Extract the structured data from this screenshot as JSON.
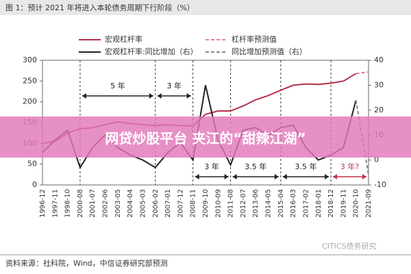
{
  "chart_data": {
    "type": "line",
    "title": "图 1：预计 2021 年将进入本轮债务周期下行阶段（%）",
    "categories": [
      "1996-12",
      "1997-11",
      "1998-10",
      "2000-08",
      "2001-07",
      "2002-06",
      "2003-05",
      "2004-04",
      "2005-03",
      "2006-02",
      "2007-01",
      "2007-12",
      "2008-11",
      "2009-10",
      "2010-09",
      "2011-08",
      "2012-07",
      "2013-06",
      "2014-05",
      "2015-04",
      "2016-03",
      "2017-02",
      "2018-01",
      "2018-12",
      "2019-11",
      "2020-10",
      "2021-09"
    ],
    "series": [
      {
        "name": "宏观杠杆率",
        "color": "#b3304a",
        "dash": false,
        "values": [
          100,
          105,
          125,
          135,
          138,
          145,
          152,
          148,
          145,
          143,
          145,
          143,
          142,
          170,
          178,
          178,
          190,
          205,
          215,
          228,
          240,
          243,
          242,
          245,
          250,
          268,
          null
        ]
      },
      {
        "name": "杠杆率预测值",
        "color": "#e0809c",
        "dash": true,
        "values": [
          null,
          null,
          null,
          null,
          null,
          null,
          null,
          null,
          null,
          null,
          null,
          null,
          null,
          null,
          null,
          null,
          null,
          null,
          null,
          null,
          null,
          null,
          null,
          null,
          null,
          268,
          272
        ]
      },
      {
        "name": "宏观杠杆率:同比增加（右）",
        "color": "#222222",
        "dash": false,
        "axis": "y2",
        "values": [
          3,
          8,
          12,
          -3,
          5,
          10,
          5,
          2,
          0,
          -3,
          3,
          7,
          0,
          30,
          8,
          -2,
          12,
          13,
          10,
          13,
          14,
          5,
          0,
          2,
          5,
          24,
          null
        ]
      },
      {
        "name": "同比增加预测值（右）",
        "color": "#888888",
        "dash": true,
        "axis": "y2",
        "values": [
          null,
          null,
          null,
          null,
          null,
          null,
          null,
          null,
          null,
          null,
          null,
          null,
          null,
          null,
          null,
          null,
          null,
          null,
          null,
          null,
          null,
          null,
          null,
          null,
          null,
          24,
          -6
        ]
      }
    ],
    "ylim": [
      0,
      300
    ],
    "yticks": [
      0,
      50,
      100,
      150,
      200,
      250,
      300
    ],
    "y2lim": [
      -10,
      40
    ],
    "y2ticks": [
      -10,
      0,
      10,
      20,
      30,
      40
    ],
    "annotations": [
      "5 年",
      "3 年",
      "3 年",
      "3.5 年",
      "3.5 年",
      "3 年?"
    ],
    "source": "资料来源：社科院，Wind，中信证券研究部预测",
    "watermark": "CITICS债务研究",
    "banner": "网贷炒股平台 夹江的“甜辣江湖”"
  }
}
